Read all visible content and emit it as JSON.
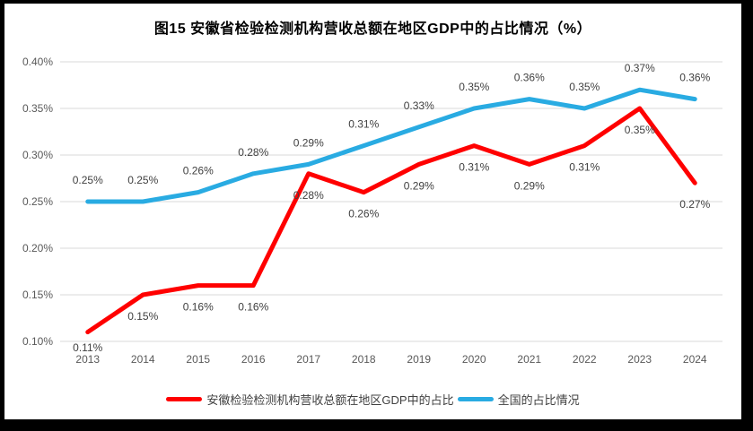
{
  "figure": {
    "title": "图15 安徽省检验检测机构营收总额在地区GDP中的占比情况（%）"
  },
  "chart_data": {
    "type": "line",
    "title": "图15 安徽省检验检测机构营收总额在地区GDP中的占比情况（%）",
    "unit": "percent",
    "categories": [
      "2013",
      "2014",
      "2015",
      "2016",
      "2017",
      "2018",
      "2019",
      "2020",
      "2021",
      "2022",
      "2023",
      "2024"
    ],
    "series": [
      {
        "name": "安徽检验检测机构营收总额在地区GDP中的占比",
        "color": "#FF0000",
        "values": [
          0.11,
          0.15,
          0.16,
          0.16,
          0.28,
          0.26,
          0.29,
          0.31,
          0.29,
          0.31,
          0.35,
          0.27
        ],
        "labels": [
          "0.11%",
          "0.15%",
          "0.16%",
          "0.16%",
          "0.28%",
          "0.26%",
          "0.29%",
          "0.31%",
          "0.29%",
          "0.31%",
          "0.35%",
          "0.27%"
        ],
        "label_position": "below"
      },
      {
        "name": "全国的占比情况",
        "color": "#29ABE2",
        "values": [
          0.25,
          0.25,
          0.26,
          0.28,
          0.29,
          0.31,
          0.33,
          0.35,
          0.36,
          0.35,
          0.37,
          0.36
        ],
        "labels": [
          "0.25%",
          "0.25%",
          "0.26%",
          "0.28%",
          "0.29%",
          "0.31%",
          "0.33%",
          "0.35%",
          "0.36%",
          "0.35%",
          "0.37%",
          "0.36%"
        ],
        "label_position": "above"
      }
    ],
    "xlabel": "",
    "ylabel": "",
    "ylim": [
      0.1,
      0.4
    ],
    "ytick_values": [
      0.1,
      0.15,
      0.2,
      0.25,
      0.3,
      0.35,
      0.4
    ],
    "ytick_labels": [
      "0.10%",
      "0.15%",
      "0.20%",
      "0.25%",
      "0.30%",
      "0.35%",
      "0.40%"
    ],
    "grid": true,
    "legend_position": "bottom"
  },
  "legend": {
    "items": [
      {
        "label": "安徽检验检测机构营收总额在地区GDP中的占比",
        "color": "#FF0000"
      },
      {
        "label": "全国的占比情况",
        "color": "#29ABE2"
      }
    ]
  },
  "colors": {
    "background": "#FFFFFF",
    "frame_border": "#000000",
    "gridline": "#D9D9D9",
    "axis_text": "#595959",
    "data_label_text": "#404040",
    "series_anhui": "#FF0000",
    "series_national": "#29ABE2"
  }
}
